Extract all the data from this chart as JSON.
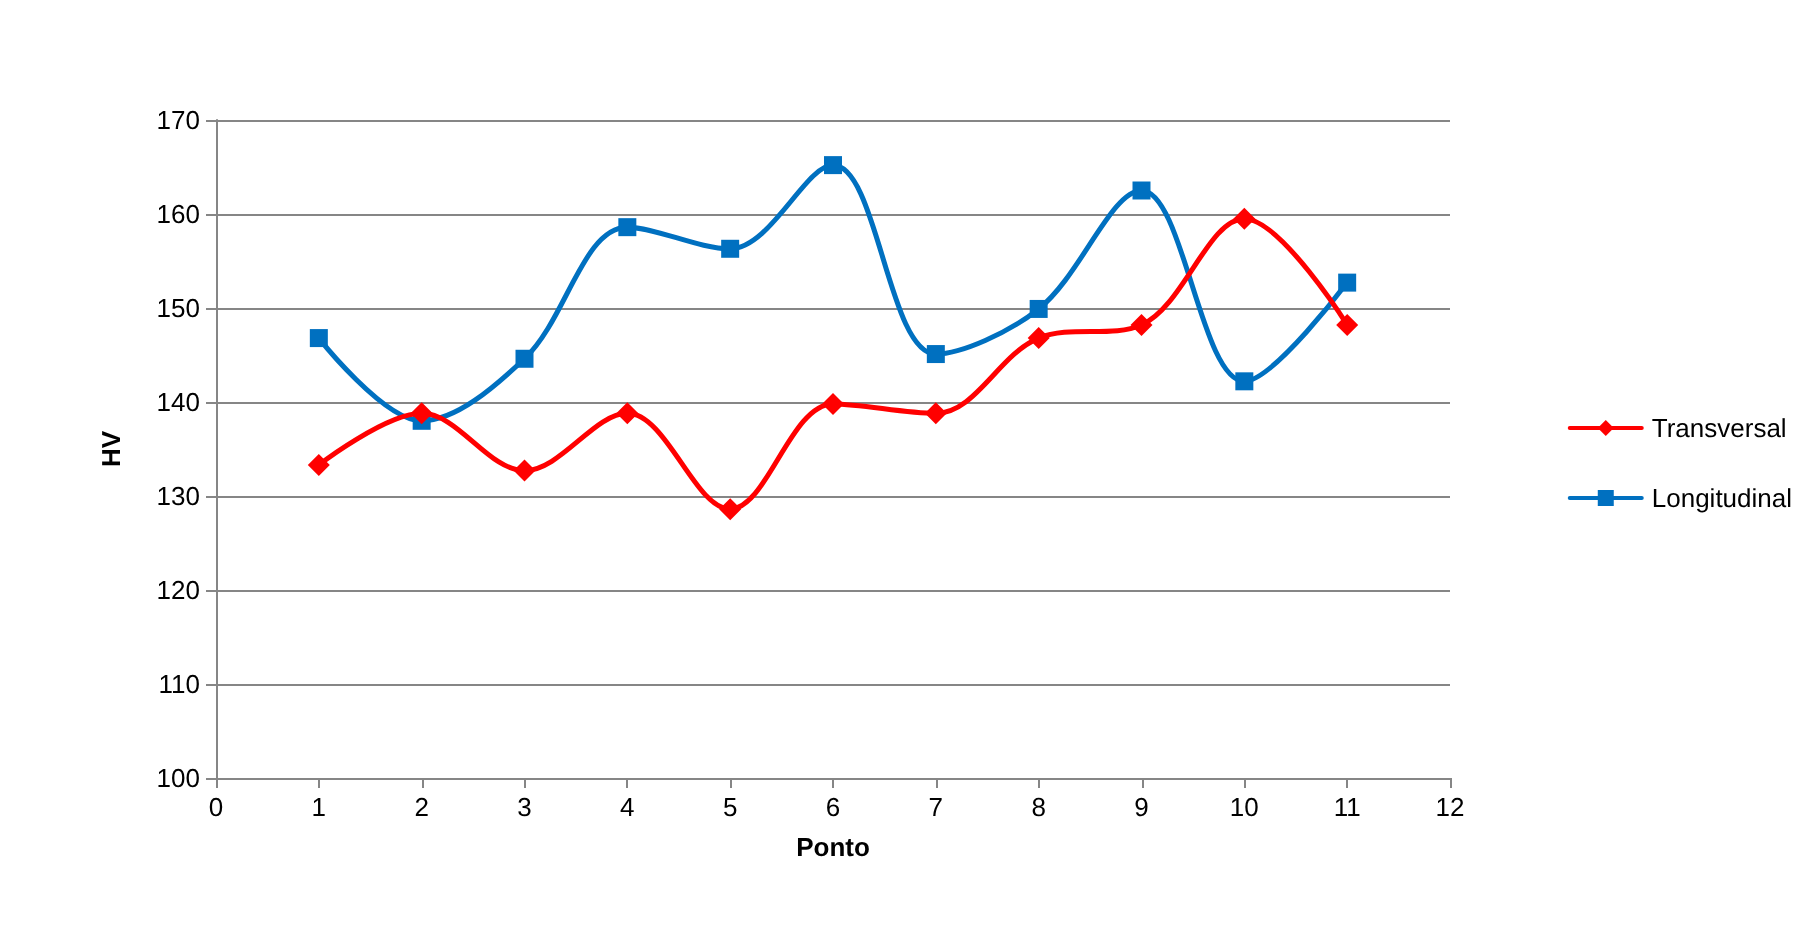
{
  "chart_data": {
    "type": "line",
    "xlabel": "Ponto",
    "ylabel": "HV",
    "x": [
      1,
      2,
      3,
      4,
      5,
      6,
      7,
      8,
      9,
      10,
      11
    ],
    "series": [
      {
        "name": "Transversal",
        "color": "#ff0000",
        "marker": "diamond",
        "values": [
          133.3,
          138.8,
          132.7,
          138.8,
          128.6,
          139.8,
          138.8,
          146.8,
          148.2,
          159.5,
          148.2
        ]
      },
      {
        "name": "Longitudinal",
        "color": "#0070c0",
        "marker": "square",
        "values": [
          146.8,
          138.0,
          144.6,
          158.6,
          156.3,
          165.2,
          145.1,
          149.9,
          162.5,
          142.2,
          152.7
        ]
      }
    ],
    "xlim": [
      0,
      12
    ],
    "xticks": [
      0,
      1,
      2,
      3,
      4,
      5,
      6,
      7,
      8,
      9,
      10,
      11,
      12
    ],
    "ylim": [
      100,
      170
    ],
    "yticks": [
      100,
      110,
      120,
      130,
      140,
      150,
      160,
      170
    ],
    "grid": "y",
    "legend": "right",
    "line_style": "solid"
  }
}
